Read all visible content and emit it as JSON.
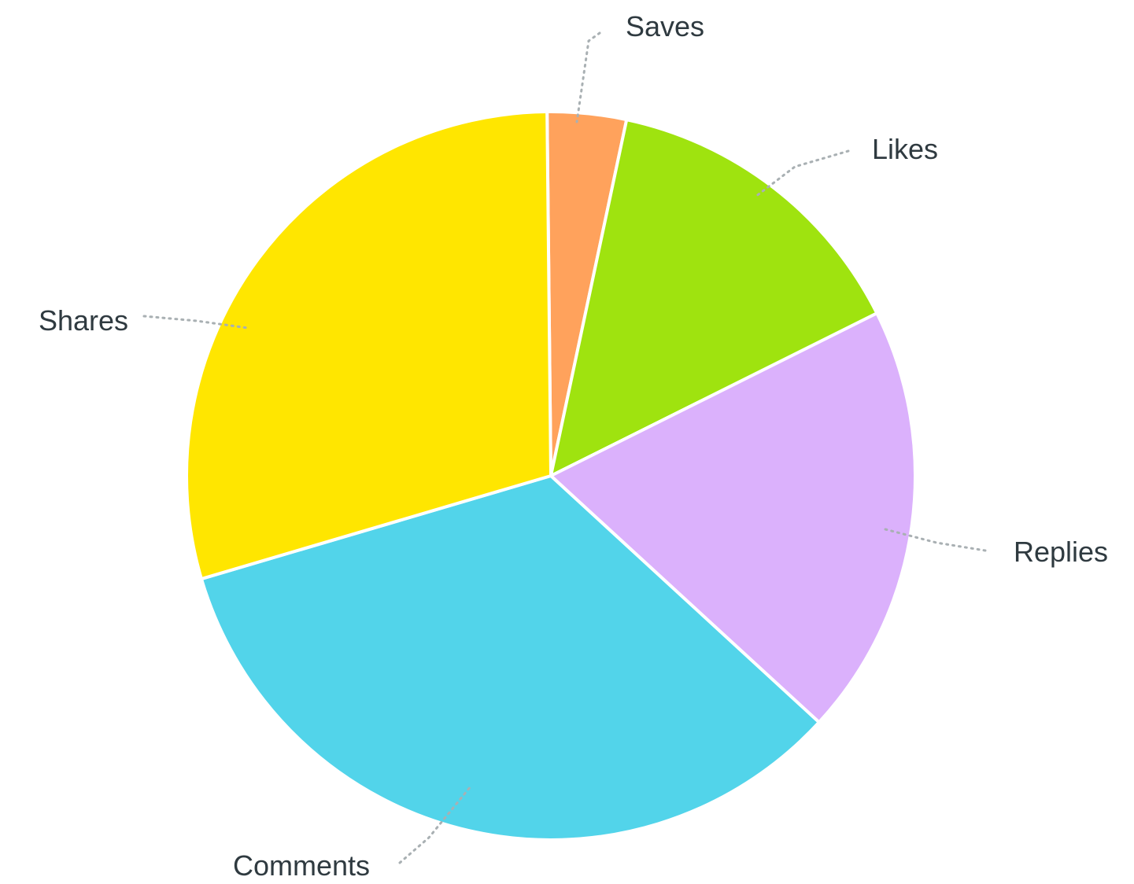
{
  "chart_data": {
    "type": "pie",
    "title": "",
    "legend": "none",
    "slices": [
      {
        "label": "Saves",
        "value": 3.5,
        "color": "#ffa25c"
      },
      {
        "label": "Likes",
        "value": 14.3,
        "color": "#9fe30f"
      },
      {
        "label": "Replies",
        "value": 19.2,
        "color": "#dbb1fc"
      },
      {
        "label": "Comments",
        "value": 33.6,
        "color": "#52d4ea"
      },
      {
        "label": "Shares",
        "value": 29.4,
        "color": "#ffe600"
      }
    ]
  }
}
